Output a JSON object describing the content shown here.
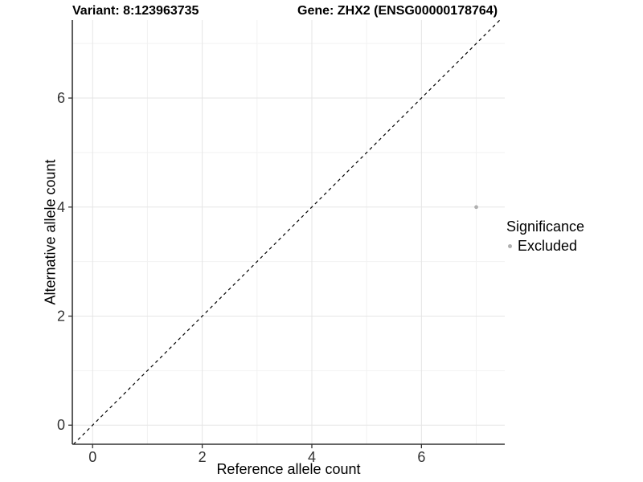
{
  "titles": {
    "variant": "Variant: 8:123963735",
    "gene": "Gene: ZHX2 (ENSG00000178764)"
  },
  "chart_data": {
    "type": "scatter",
    "title": "Variant: 8:123963735   Gene: ZHX2 (ENSG00000178764)",
    "xlabel": "Reference allele count",
    "ylabel": "Alternative allele count",
    "xlim": [
      -0.37,
      7.52
    ],
    "ylim": [
      -0.35,
      7.43
    ],
    "xticks": [
      0,
      2,
      4,
      6
    ],
    "yticks": [
      0,
      2,
      4,
      6
    ],
    "x_minor": [
      1,
      3,
      5,
      7
    ],
    "y_minor": [
      1,
      3,
      5,
      7
    ],
    "grid": true,
    "series": [
      {
        "name": "Excluded",
        "color": "#b0b0b0",
        "points": [
          {
            "x": 7,
            "y": 4
          }
        ]
      }
    ],
    "reference_line": {
      "type": "identity",
      "style": "dashed",
      "color": "#000000"
    },
    "legend": {
      "title": "Significance",
      "position": "right",
      "items": [
        {
          "label": "Excluded",
          "color": "#b0b0b0"
        }
      ]
    }
  },
  "colors": {
    "background": "#ffffff",
    "axis_line": "#333333",
    "tick_label": "#333333",
    "grid_major": "#e5e5e5",
    "grid_minor": "#f2f2f2",
    "point": "#b0b0b0"
  }
}
